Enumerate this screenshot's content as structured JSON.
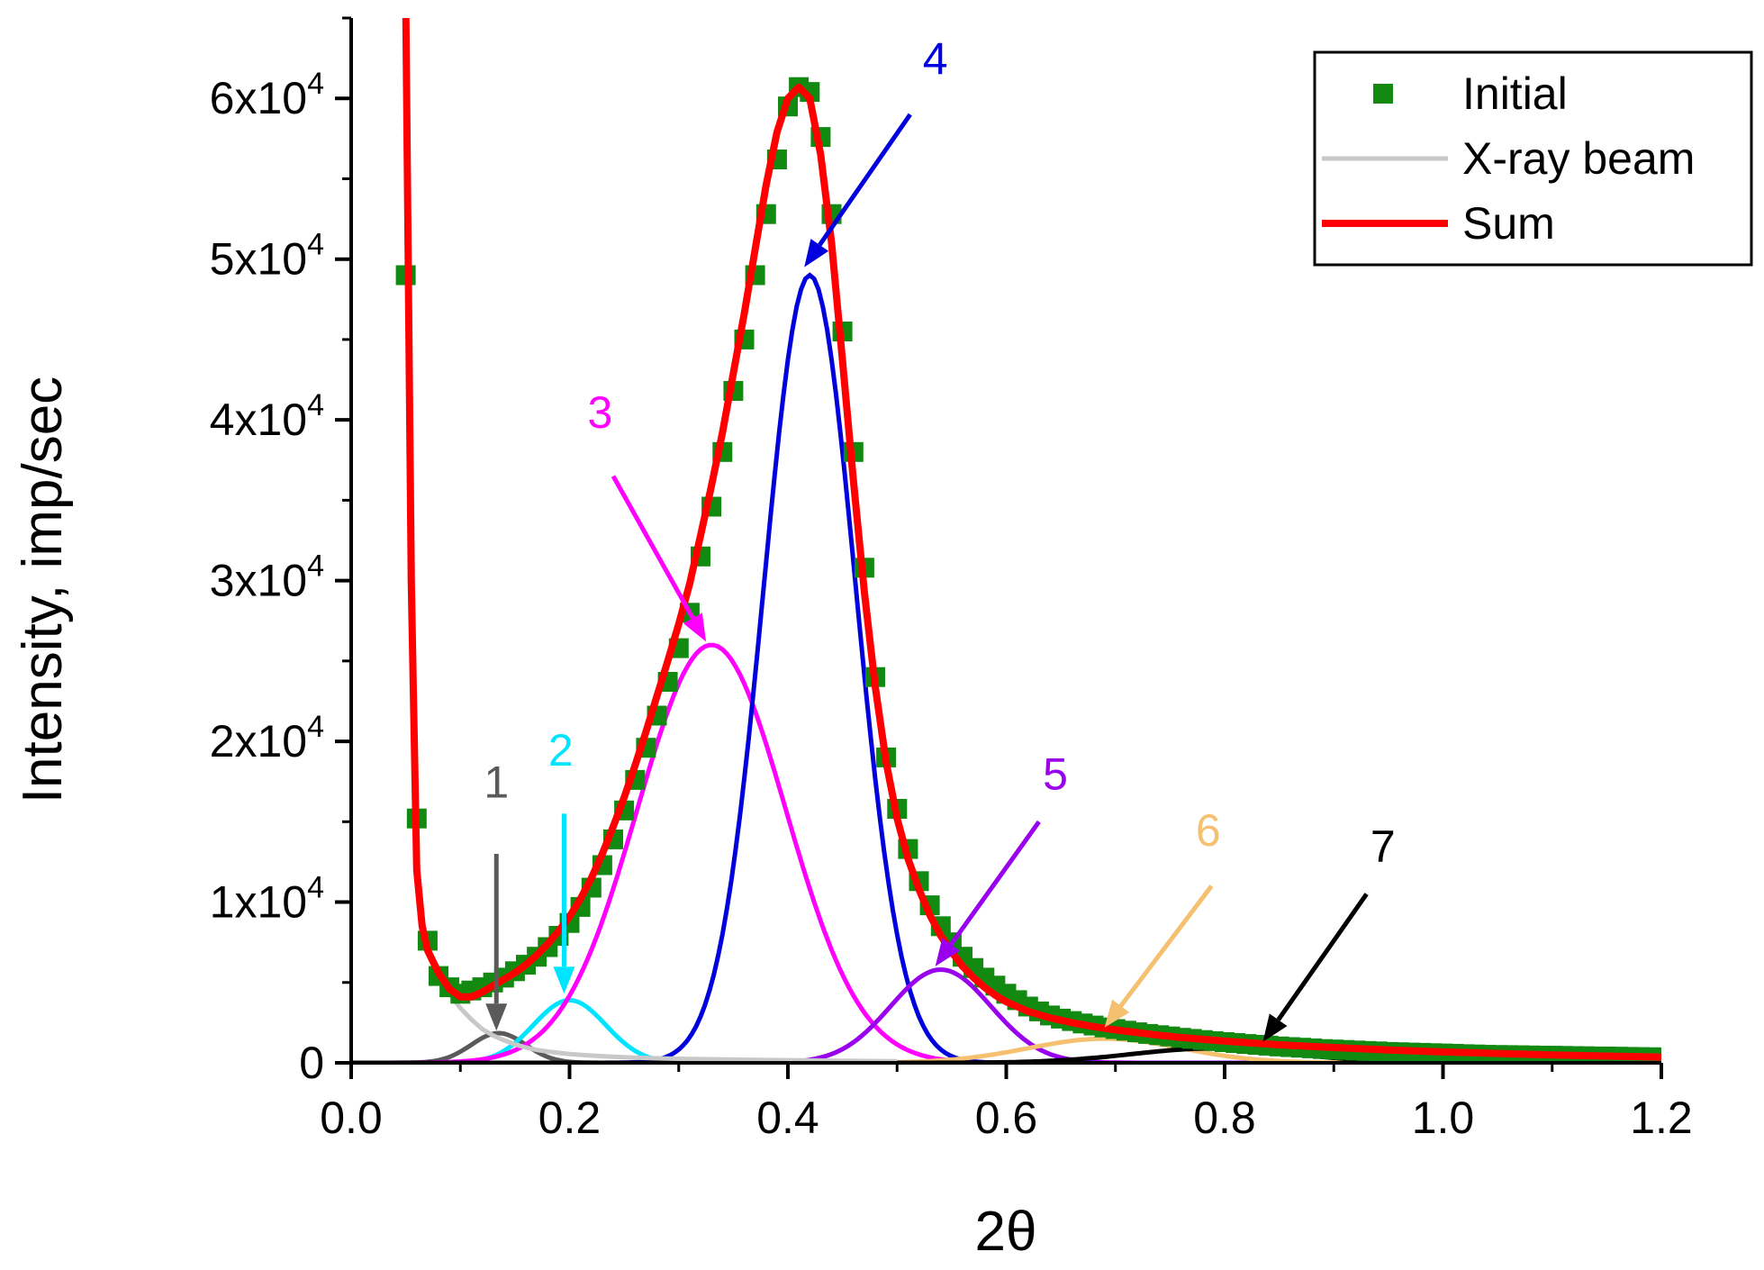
{
  "chart_data": {
    "type": "line",
    "xlabel": "2θ",
    "ylabel": "Intensity, imp/sec",
    "xlim": [
      0.0,
      1.2
    ],
    "ylim": [
      0,
      65000
    ],
    "x_ticks": [
      0.0,
      0.2,
      0.4,
      0.6,
      0.8,
      1.0,
      1.2
    ],
    "x_tick_labels": [
      "0.0",
      "0.2",
      "0.4",
      "0.6",
      "0.8",
      "1.0",
      "1.2"
    ],
    "y_ticks": [
      0,
      10000,
      20000,
      30000,
      40000,
      50000,
      60000
    ],
    "y_tick_labels": [
      {
        "base": "0",
        "exp": ""
      },
      {
        "base": "1x10",
        "exp": "4"
      },
      {
        "base": "2x10",
        "exp": "4"
      },
      {
        "base": "3x10",
        "exp": "4"
      },
      {
        "base": "4x10",
        "exp": "4"
      },
      {
        "base": "5x10",
        "exp": "4"
      },
      {
        "base": "6x10",
        "exp": "4"
      }
    ],
    "legend_position": "top-right",
    "grid": false,
    "initial": {
      "name": "Initial",
      "color": "#128a12",
      "x": [
        0.05,
        0.06,
        0.07,
        0.08,
        0.09,
        0.1,
        0.11,
        0.12,
        0.13,
        0.14,
        0.15,
        0.16,
        0.17,
        0.18,
        0.19,
        0.2,
        0.21,
        0.22,
        0.23,
        0.24,
        0.25,
        0.26,
        0.27,
        0.28,
        0.29,
        0.3,
        0.31,
        0.32,
        0.33,
        0.34,
        0.35,
        0.36,
        0.37,
        0.38,
        0.39,
        0.4,
        0.41,
        0.42,
        0.43,
        0.44,
        0.45,
        0.46,
        0.47,
        0.48,
        0.49,
        0.5,
        0.51,
        0.52,
        0.53,
        0.54,
        0.55,
        0.56,
        0.57,
        0.58,
        0.59,
        0.6,
        0.61,
        0.62,
        0.63,
        0.64,
        0.65,
        0.66,
        0.67,
        0.68,
        0.69,
        0.7,
        0.71,
        0.72,
        0.73,
        0.74,
        0.75,
        0.76,
        0.77,
        0.78,
        0.79,
        0.8,
        0.81,
        0.82,
        0.83,
        0.84,
        0.85,
        0.86,
        0.87,
        0.88,
        0.89,
        0.9,
        0.91,
        0.92,
        0.93,
        0.94,
        0.95,
        0.96,
        0.97,
        0.98,
        0.99,
        1.0,
        1.01,
        1.02,
        1.03,
        1.04,
        1.05,
        1.06,
        1.07,
        1.08,
        1.09,
        1.1,
        1.11,
        1.12,
        1.13,
        1.14,
        1.15,
        1.16,
        1.17,
        1.18,
        1.19,
        1.2
      ],
      "y": [
        49000,
        15200,
        7600,
        5400,
        4700,
        4300,
        4500,
        4700,
        5000,
        5300,
        5700,
        6100,
        6600,
        7200,
        7900,
        8700,
        9700,
        10900,
        12300,
        13900,
        15700,
        17600,
        19600,
        21600,
        23700,
        25800,
        28000,
        31500,
        34600,
        38000,
        41800,
        45000,
        49000,
        52800,
        56200,
        59500,
        60700,
        60400,
        57600,
        52800,
        45500,
        38000,
        30800,
        24000,
        19000,
        15800,
        13300,
        11300,
        9800,
        8500,
        7500,
        6600,
        5900,
        5300,
        4800,
        4300,
        3900,
        3500,
        3200,
        2950,
        2750,
        2600,
        2450,
        2320,
        2200,
        2100,
        2000,
        1900,
        1800,
        1720,
        1640,
        1560,
        1490,
        1420,
        1350,
        1290,
        1230,
        1170,
        1120,
        1070,
        1020,
        980,
        940,
        900,
        860,
        830,
        800,
        770,
        740,
        710,
        680,
        660,
        640,
        620,
        600,
        580,
        560,
        540,
        520,
        500,
        490,
        480,
        470,
        460,
        450,
        440,
        430,
        420,
        410,
        400,
        390,
        380,
        370,
        360,
        350,
        340
      ]
    },
    "beam": {
      "name": "X-ray beam",
      "color": "#c8c8c8",
      "x": [
        0.05,
        0.06,
        0.07,
        0.08,
        0.09,
        0.1,
        0.11,
        0.12,
        0.13,
        0.14,
        0.15,
        0.16,
        0.17,
        0.18,
        0.19,
        0.2,
        0.22,
        0.24,
        0.26,
        0.28,
        0.3,
        0.35,
        0.4,
        0.45,
        0.5
      ],
      "y": [
        66000,
        11500,
        6800,
        5400,
        4300,
        3400,
        2700,
        2100,
        1700,
        1400,
        1150,
        950,
        800,
        700,
        620,
        550,
        450,
        380,
        320,
        280,
        250,
        200,
        160,
        130,
        100
      ]
    },
    "sum": {
      "name": "Sum",
      "color": "#ff0000",
      "x": [
        0.05,
        0.055,
        0.06,
        0.065,
        0.07,
        0.08,
        0.09,
        0.1,
        0.11,
        0.12,
        0.13,
        0.14,
        0.15,
        0.16,
        0.17,
        0.18,
        0.19,
        0.2,
        0.21,
        0.22,
        0.23,
        0.24,
        0.25,
        0.26,
        0.27,
        0.28,
        0.29,
        0.3,
        0.31,
        0.32,
        0.33,
        0.34,
        0.35,
        0.36,
        0.37,
        0.38,
        0.39,
        0.4,
        0.41,
        0.42,
        0.43,
        0.44,
        0.45,
        0.46,
        0.47,
        0.48,
        0.49,
        0.5,
        0.51,
        0.52,
        0.53,
        0.54,
        0.55,
        0.56,
        0.57,
        0.58,
        0.59,
        0.6,
        0.62,
        0.64,
        0.66,
        0.68,
        0.7,
        0.72,
        0.74,
        0.76,
        0.78,
        0.8,
        0.85,
        0.9,
        0.95,
        1.0,
        1.05,
        1.1,
        1.15,
        1.2
      ],
      "y": [
        66000,
        30000,
        12000,
        8500,
        7000,
        5600,
        4600,
        4100,
        4100,
        4400,
        4800,
        5200,
        5600,
        6100,
        6700,
        7400,
        8200,
        9100,
        10200,
        11500,
        13000,
        14700,
        16500,
        18500,
        20600,
        22800,
        25000,
        27300,
        29800,
        32800,
        35900,
        39200,
        42900,
        46600,
        50600,
        54600,
        57900,
        60000,
        60700,
        60000,
        56500,
        51000,
        43700,
        36200,
        29300,
        23400,
        18700,
        15200,
        12700,
        10800,
        9200,
        7900,
        6900,
        6000,
        5300,
        4700,
        4200,
        3800,
        3200,
        2800,
        2500,
        2250,
        2050,
        1880,
        1720,
        1580,
        1460,
        1350,
        1120,
        950,
        800,
        680,
        580,
        490,
        420,
        360
      ]
    },
    "components": [
      {
        "label": "1",
        "color": "#5a5a5a",
        "center": 0.135,
        "amplitude": 1850,
        "sigma": 0.025
      },
      {
        "label": "2",
        "color": "#00e5ff",
        "center": 0.2,
        "amplitude": 3900,
        "sigma": 0.033
      },
      {
        "label": "3",
        "color": "#ff00ff",
        "center": 0.33,
        "amplitude": 26000,
        "sigma": 0.068
      },
      {
        "label": "4",
        "color": "#0000dd",
        "center": 0.42,
        "amplitude": 49000,
        "sigma": 0.042
      },
      {
        "label": "5",
        "color": "#9900ee",
        "center": 0.54,
        "amplitude": 5800,
        "sigma": 0.046
      },
      {
        "label": "6",
        "color": "#f5c070",
        "center": 0.69,
        "amplitude": 1500,
        "sigma": 0.07
      },
      {
        "label": "7",
        "color": "#000000",
        "center": 0.79,
        "amplitude": 900,
        "sigma": 0.075
      }
    ],
    "annotations": [
      {
        "text": "1",
        "color": "#5a5a5a",
        "label_at": [
          0.133,
          16500
        ],
        "arrow_from": [
          0.133,
          13000
        ],
        "arrow_to": [
          0.133,
          2000
        ]
      },
      {
        "text": "2",
        "color": "#00e5ff",
        "label_at": [
          0.192,
          18500
        ],
        "arrow_from": [
          0.195,
          15500
        ],
        "arrow_to": [
          0.195,
          4300
        ]
      },
      {
        "text": "3",
        "color": "#ff00ff",
        "label_at": [
          0.228,
          39500
        ],
        "arrow_from": [
          0.24,
          36500
        ],
        "arrow_to": [
          0.325,
          26200
        ]
      },
      {
        "text": "4",
        "color": "#0000dd",
        "label_at": [
          0.535,
          61500
        ],
        "arrow_from": [
          0.512,
          59000
        ],
        "arrow_to": [
          0.415,
          49500
        ]
      },
      {
        "text": "5",
        "color": "#9900ee",
        "label_at": [
          0.645,
          17000
        ],
        "arrow_from": [
          0.63,
          15000
        ],
        "arrow_to": [
          0.535,
          6000
        ]
      },
      {
        "text": "6",
        "color": "#f5c070",
        "label_at": [
          0.785,
          13500
        ],
        "arrow_from": [
          0.788,
          11000
        ],
        "arrow_to": [
          0.69,
          2200
        ]
      },
      {
        "text": "7",
        "color": "#000000",
        "label_at": [
          0.945,
          12500
        ],
        "arrow_from": [
          0.93,
          10500
        ],
        "arrow_to": [
          0.835,
          1300
        ]
      }
    ]
  }
}
